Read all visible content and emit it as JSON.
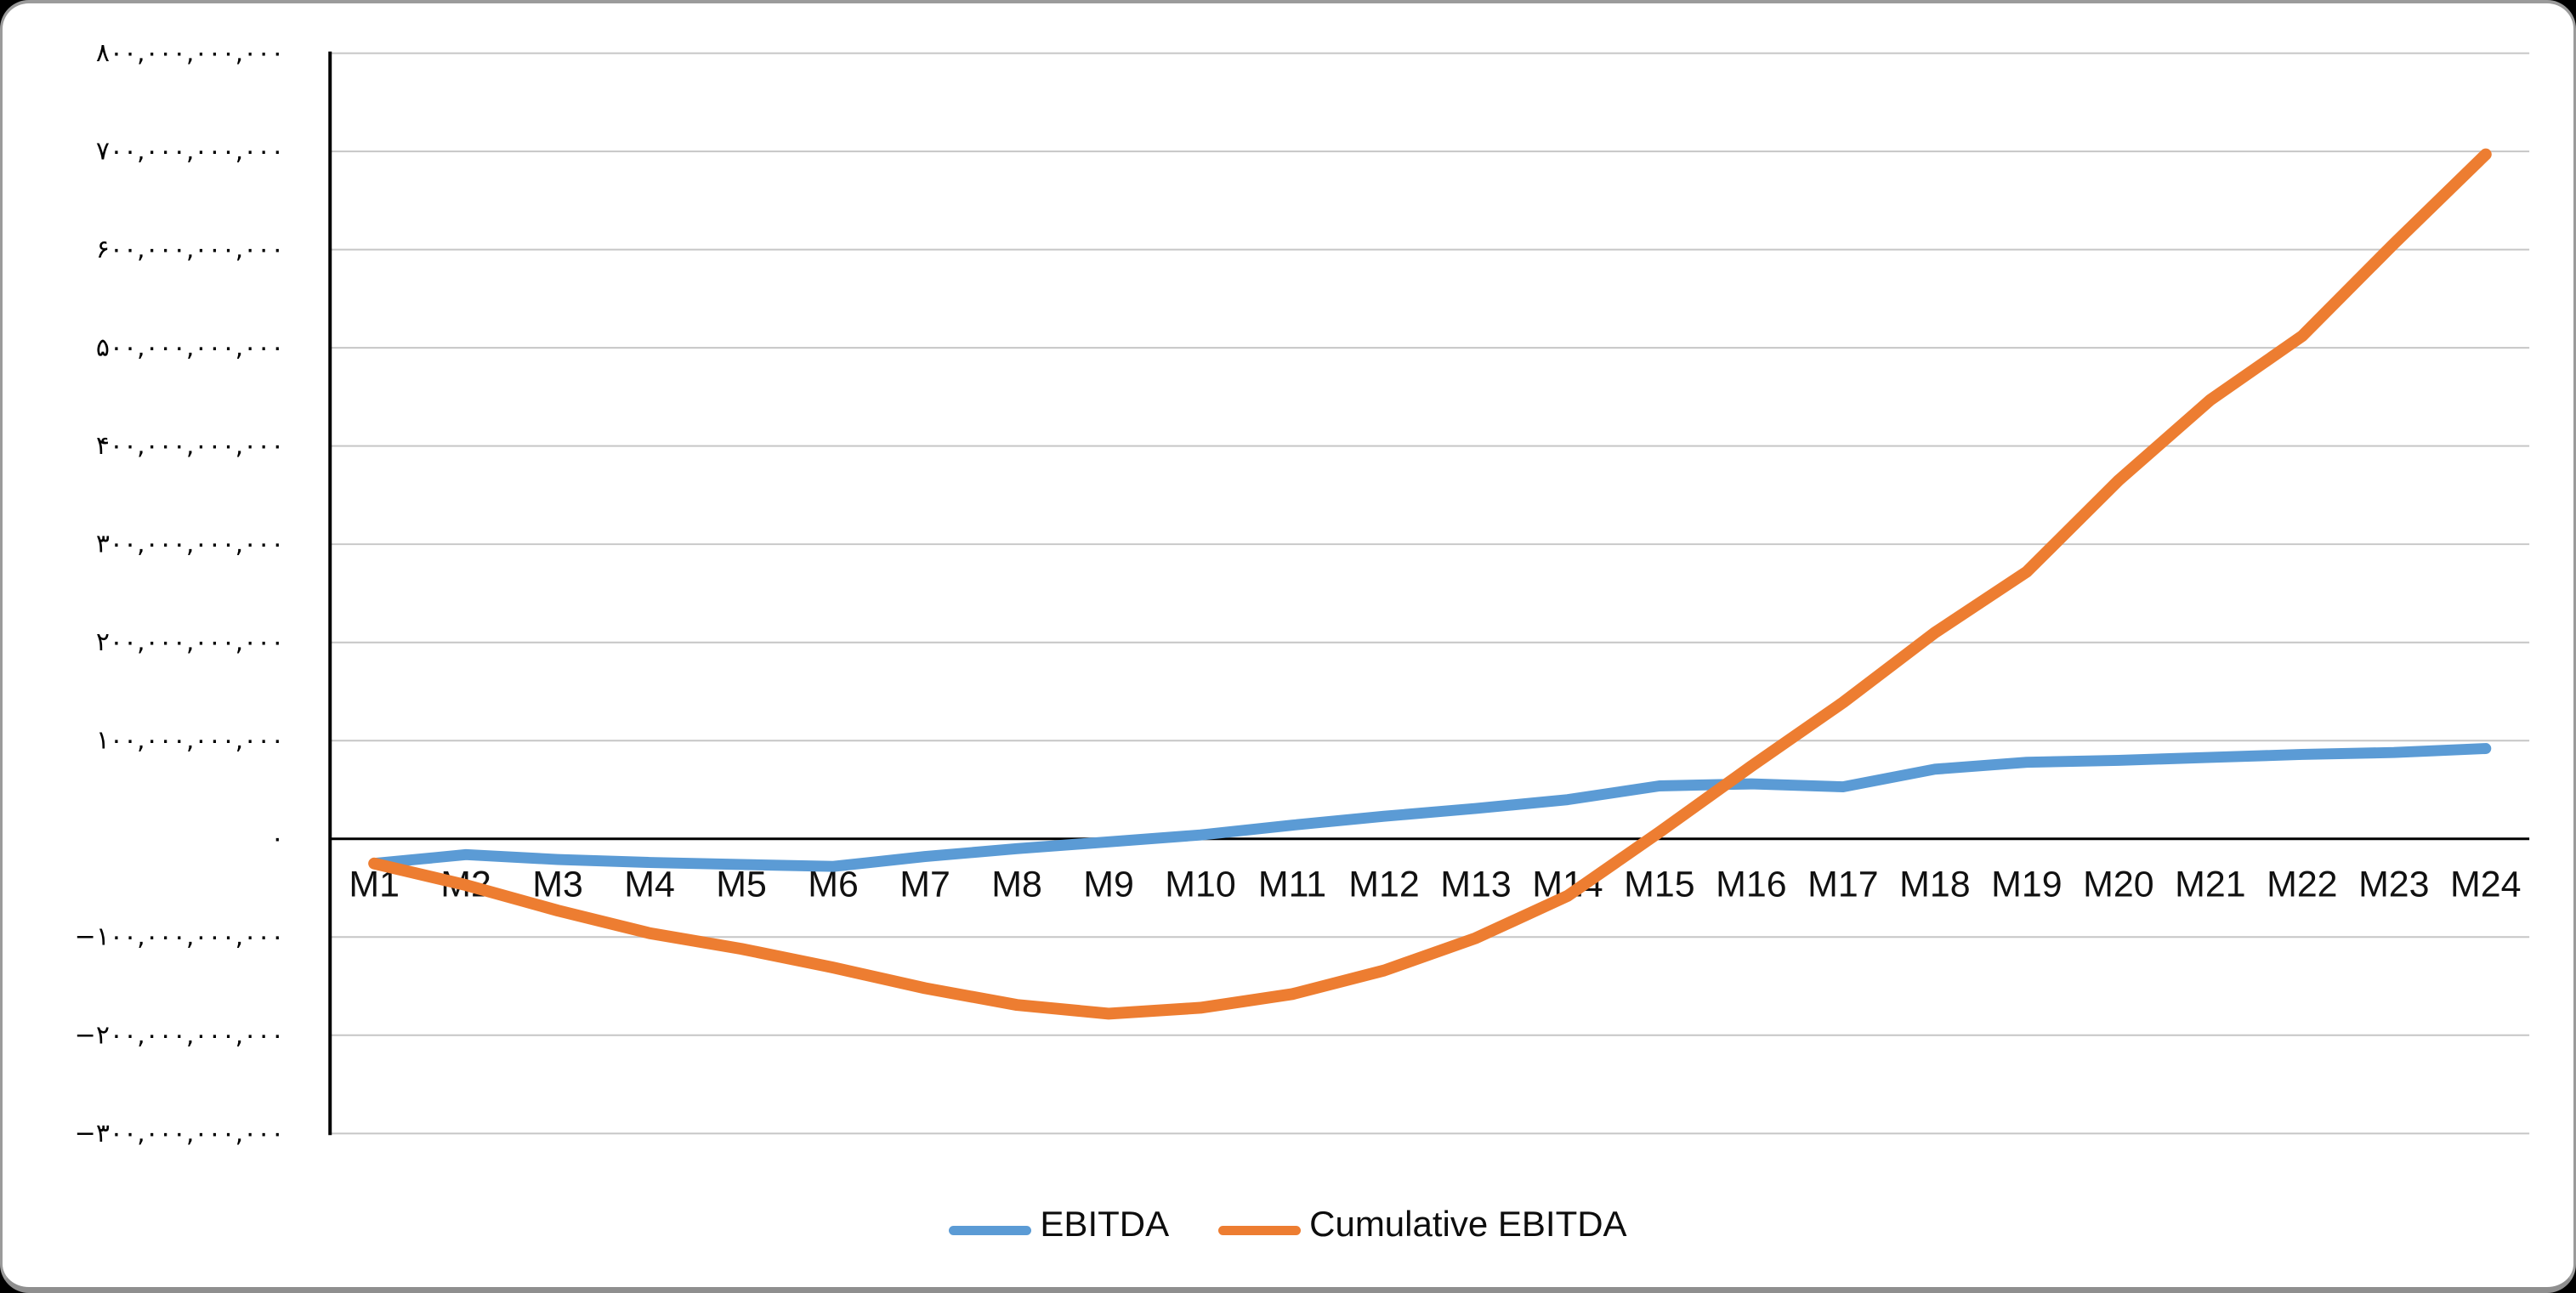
{
  "chart_data": {
    "type": "line",
    "title": "",
    "xlabel": "",
    "ylabel": "",
    "categories": [
      "M1",
      "M2",
      "M3",
      "M4",
      "M5",
      "M6",
      "M7",
      "M8",
      "M9",
      "M10",
      "M11",
      "M12",
      "M13",
      "M14",
      "M15",
      "M16",
      "M17",
      "M18",
      "M19",
      "M20",
      "M21",
      "M22",
      "M23",
      "M24"
    ],
    "series": [
      {
        "name": "EBITDA",
        "color": "#5B9BD5",
        "stroke_width": 13,
        "values": [
          -25000000000,
          -16000000000,
          -21000000000,
          -24000000000,
          -26000000000,
          -28000000000,
          -18000000000,
          -10000000000,
          -3000000000,
          4000000000,
          14000000000,
          23000000000,
          31000000000,
          40000000000,
          54000000000,
          56000000000,
          53000000000,
          71000000000,
          78000000000,
          80000000000,
          83000000000,
          86000000000,
          88000000000,
          92000000000
        ]
      },
      {
        "name": "Cumulative EBITDA",
        "color": "#ED7D31",
        "stroke_width": 14,
        "values": [
          -25000000000,
          -47000000000,
          -73000000000,
          -96000000000,
          -112000000000,
          -131000000000,
          -152000000000,
          -169000000000,
          -178000000000,
          -172000000000,
          -158000000000,
          -134000000000,
          -101000000000,
          -58000000000,
          7000000000,
          74000000000,
          139000000000,
          210000000000,
          272000000000,
          365000000000,
          447000000000,
          512000000000,
          606000000000,
          697000000000
        ]
      }
    ],
    "y_axis": {
      "tick_labels": [
        "۸۰۰,۰۰۰,۰۰۰,۰۰۰",
        "۷۰۰,۰۰۰,۰۰۰,۰۰۰",
        "۶۰۰,۰۰۰,۰۰۰,۰۰۰",
        "۵۰۰,۰۰۰,۰۰۰,۰۰۰",
        "۴۰۰,۰۰۰,۰۰۰,۰۰۰",
        "۳۰۰,۰۰۰,۰۰۰,۰۰۰",
        "۲۰۰,۰۰۰,۰۰۰,۰۰۰",
        "۱۰۰,۰۰۰,۰۰۰,۰۰۰",
        "۰",
        "−۱۰۰,۰۰۰,۰۰۰,۰۰۰",
        "−۲۰۰,۰۰۰,۰۰۰,۰۰۰",
        "−۳۰۰,۰۰۰,۰۰۰,۰۰۰"
      ],
      "tick_values": [
        800000000000,
        700000000000,
        600000000000,
        500000000000,
        400000000000,
        300000000000,
        200000000000,
        100000000000,
        0,
        -100000000000,
        -200000000000,
        -300000000000
      ],
      "numeral_system": "persian"
    },
    "ylim": [
      -300000000000,
      800000000000
    ],
    "grid": true,
    "legend_position": "bottom",
    "colors": {
      "gridline": "#c6c6c6",
      "zero_axis": "#000000",
      "y_axis_line": "#000000",
      "tick_text": "#000000",
      "background": "#ffffff",
      "page_background": "#000000"
    }
  }
}
